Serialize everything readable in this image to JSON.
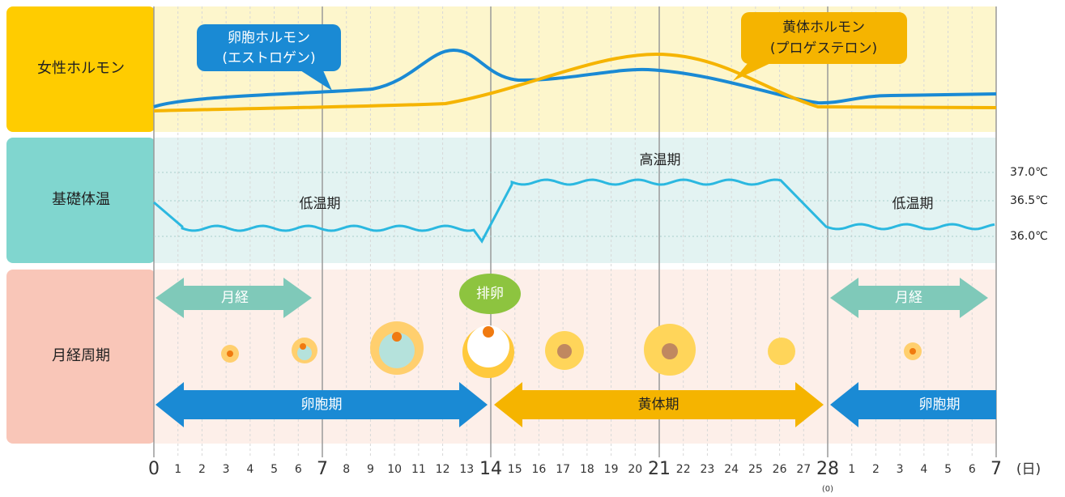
{
  "rows": [
    "女性ホルモン",
    "基礎体温",
    "月経周期"
  ],
  "hormones": [
    {
      "line1": "卵胞ホルモン",
      "line2": "(エストロゲン)"
    },
    {
      "line1": "黄体ホルモン",
      "line2": "(プロゲステロン)"
    }
  ],
  "temperature": {
    "phases": [
      "低温期",
      "高温期",
      "低温期"
    ],
    "ticks": [
      "37.0℃",
      "36.5℃",
      "36.0℃"
    ]
  },
  "cycle": {
    "menstruation": [
      "月経",
      "月経"
    ],
    "ovulation": "排卵",
    "phases": [
      "卵胞期",
      "黄体期",
      "卵胞期"
    ]
  },
  "x_axis": {
    "days": [
      "0",
      "1",
      "2",
      "3",
      "4",
      "5",
      "6",
      "7",
      "8",
      "9",
      "10",
      "11",
      "12",
      "13",
      "14",
      "15",
      "16",
      "17",
      "18",
      "19",
      "20",
      "21",
      "22",
      "23",
      "24",
      "25",
      "26",
      "27",
      "28",
      "1",
      "2",
      "3",
      "4",
      "5",
      "6",
      "7"
    ],
    "zero_note": "(0)",
    "unit": "(日)"
  }
}
